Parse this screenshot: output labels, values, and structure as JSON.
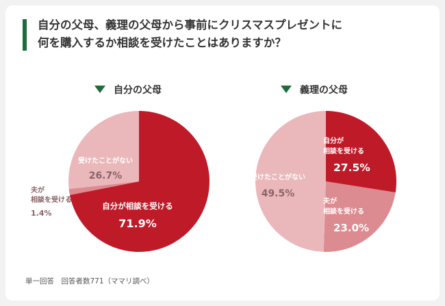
{
  "title": {
    "line1": "自分の父母、義理の父母から事前にクリスマスプレゼントに",
    "line2": "何を購入するか相談を受けたことはありますか？"
  },
  "colors": {
    "accent": "#1e6b3b",
    "dark_red": "#bf1a28",
    "mid_pink": "#dc8b90",
    "light_pink": "#eab8bb"
  },
  "chart_data": [
    {
      "type": "pie",
      "title": "自分の父母",
      "slices": [
        {
          "label": "自分が相談を受ける",
          "value": 71.9,
          "value_text": "71.9%",
          "color": "#bf1a28"
        },
        {
          "label": "夫が相談を受ける",
          "value": 1.4,
          "value_text": "1.4%",
          "color": "#dc8b90"
        },
        {
          "label": "受けたことがない",
          "value": 26.7,
          "value_text": "26.7%",
          "color": "#eab8bb"
        }
      ]
    },
    {
      "type": "pie",
      "title": "義理の父母",
      "slices": [
        {
          "label": "自分が相談を受ける",
          "value": 27.5,
          "value_text": "27.5%",
          "color": "#bf1a28"
        },
        {
          "label": "夫が相談を受ける",
          "value": 23.0,
          "value_text": "23.0%",
          "color": "#dc8b90"
        },
        {
          "label": "受けたことがない",
          "value": 49.5,
          "value_text": "49.5%",
          "color": "#eab8bb"
        }
      ]
    }
  ],
  "footer": "単一回答　回答者数771（ママリ調べ）"
}
